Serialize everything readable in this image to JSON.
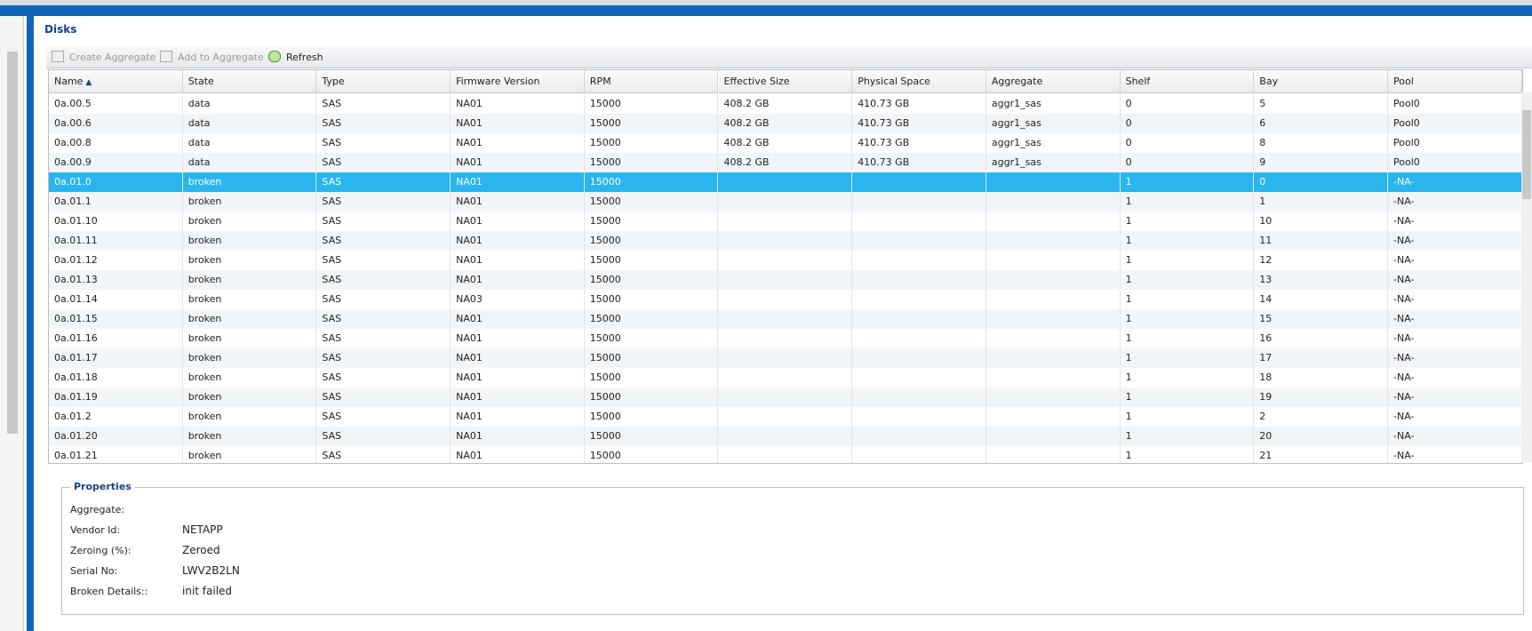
{
  "header": {
    "title": "Disks"
  },
  "toolbar": {
    "buttons": [
      "Create Aggregate",
      "Add to Aggregate",
      "Refresh"
    ]
  },
  "table": {
    "columns": [
      "Name",
      "State",
      "Type",
      "Firmware Version",
      "RPM",
      "Effective Size",
      "Physical Space",
      "Aggregate",
      "Shelf",
      "Bay",
      "Pool"
    ],
    "selected_row": 4,
    "rows": [
      [
        "0a.00.5",
        "data",
        "SAS",
        "NA01",
        "15000",
        "408.2 GB",
        "410.73 GB",
        "aggr1_sas",
        "0",
        "5",
        "Pool0"
      ],
      [
        "0a.00.6",
        "data",
        "SAS",
        "NA01",
        "15000",
        "408.2 GB",
        "410.73 GB",
        "aggr1_sas",
        "0",
        "6",
        "Pool0"
      ],
      [
        "0a.00.8",
        "data",
        "SAS",
        "NA01",
        "15000",
        "408.2 GB",
        "410.73 GB",
        "aggr1_sas",
        "0",
        "8",
        "Pool0"
      ],
      [
        "0a.00.9",
        "data",
        "SAS",
        "NA01",
        "15000",
        "408.2 GB",
        "410.73 GB",
        "aggr1_sas",
        "0",
        "9",
        "Pool0"
      ],
      [
        "0a.01.0",
        "broken",
        "SAS",
        "NA01",
        "15000",
        null,
        null,
        null,
        "1",
        "0",
        "-NA-"
      ],
      [
        "0a.01.1",
        "broken",
        "SAS",
        "NA01",
        "15000",
        null,
        null,
        null,
        "1",
        "1",
        "-NA-"
      ],
      [
        "0a.01.10",
        "broken",
        "SAS",
        "NA01",
        "15000",
        null,
        null,
        null,
        "1",
        "10",
        "-NA-"
      ],
      [
        "0a.01.11",
        "broken",
        "SAS",
        "NA01",
        "15000",
        null,
        null,
        null,
        "1",
        "11",
        "-NA-"
      ],
      [
        "0a.01.12",
        "broken",
        "SAS",
        "NA01",
        "15000",
        null,
        null,
        null,
        "1",
        "12",
        "-NA-"
      ],
      [
        "0a.01.13",
        "broken",
        "SAS",
        "NA01",
        "15000",
        null,
        null,
        null,
        "1",
        "13",
        "-NA-"
      ],
      [
        "0a.01.14",
        "broken",
        "SAS",
        "NA03",
        "15000",
        null,
        null,
        null,
        "1",
        "14",
        "-NA-"
      ],
      [
        "0a.01.15",
        "broken",
        "SAS",
        "NA01",
        "15000",
        null,
        null,
        null,
        "1",
        "15",
        "-NA-"
      ],
      [
        "0a.01.16",
        "broken",
        "SAS",
        "NA01",
        "15000",
        null,
        null,
        null,
        "1",
        "16",
        "-NA-"
      ],
      [
        "0a.01.17",
        "broken",
        "SAS",
        "NA01",
        "15000",
        null,
        null,
        null,
        "1",
        "17",
        "-NA-"
      ],
      [
        "0a.01.18",
        "broken",
        "SAS",
        "NA01",
        "15000",
        null,
        null,
        null,
        "1",
        "18",
        "-NA-"
      ],
      [
        "0a.01.19",
        "broken",
        "SAS",
        "NA01",
        "15000",
        null,
        null,
        null,
        "1",
        "19",
        "-NA-"
      ],
      [
        "0a.01.2",
        "broken",
        "SAS",
        "NA01",
        "15000",
        null,
        null,
        null,
        "1",
        "2",
        "-NA-"
      ],
      [
        "0a.01.20",
        "broken",
        "SAS",
        "NA01",
        "15000",
        null,
        null,
        null,
        "1",
        "20",
        "-NA-"
      ],
      [
        "0a.01.21",
        "broken",
        "SAS",
        "NA01",
        "15000",
        null,
        null,
        null,
        "1",
        "21",
        "-NA-"
      ]
    ]
  },
  "properties": {
    "title": "Properties",
    "fields": [
      {
        "label": "Aggregate:",
        "value": null
      },
      {
        "label": "Vendor Id:",
        "value": "NETAPP"
      },
      {
        "label": "Zeroing (%):",
        "value": "Zeroed"
      },
      {
        "label": "Serial No:",
        "value": "LWV2B2LN"
      },
      {
        "label": "Broken Details::",
        "value": "init failed"
      }
    ]
  }
}
